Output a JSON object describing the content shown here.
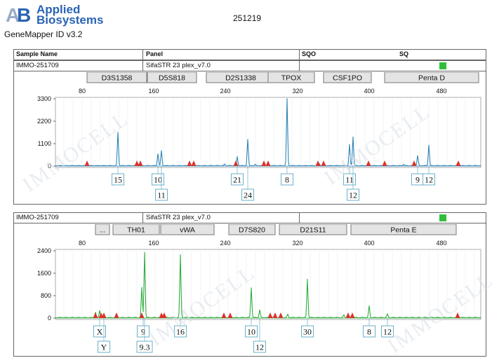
{
  "brand": {
    "line1": "Applied",
    "line2": "Biosystems",
    "logo": "AB",
    "logo_color": "#2a63b4"
  },
  "app_name": "GeneMapper ID v3.2",
  "run_id": "251219",
  "columns": {
    "sample_name": "Sample Name",
    "panel": "Panel",
    "sqo": "SQO",
    "sq": "SQ"
  },
  "watermark": "IMMOCELL",
  "panels": [
    {
      "sample": "IMMO-251709",
      "panel_name": "SifaSTR 23 plex_v7.0",
      "sq_color": "#2fbf3a",
      "dye_color": "#2f86b8",
      "markers": [
        "D3S1358",
        "D5S818",
        "D2S1338",
        "TPOX",
        "CSF1PO",
        "Penta D"
      ],
      "x_ticks": [
        "80",
        "160",
        "240",
        "320",
        "400",
        "480"
      ],
      "y_ticks": [
        "3300",
        "2200",
        "1100",
        "0"
      ],
      "alleles": [
        {
          "label": "15"
        },
        {
          "label": "10"
        },
        {
          "label": "11"
        },
        {
          "label": "21"
        },
        {
          "label": "24"
        },
        {
          "label": "8"
        },
        {
          "label": "11"
        },
        {
          "label": "12"
        },
        {
          "label": "9"
        },
        {
          "label": "12"
        }
      ]
    },
    {
      "sample": "IMMO-251709",
      "panel_name": "SifaSTR 23 plex_v7.0",
      "sq_color": "#2fbf3a",
      "dye_color": "#2fae3f",
      "markers": [
        "...",
        "TH01",
        "vWA",
        "D7S820",
        "D21S11",
        "Penta E"
      ],
      "x_ticks": [
        "80",
        "160",
        "240",
        "320",
        "400",
        "480"
      ],
      "y_ticks": [
        "2400",
        "1600",
        "800",
        "0"
      ],
      "alleles": [
        {
          "label": "X"
        },
        {
          "label": "Y"
        },
        {
          "label": "9"
        },
        {
          "label": "9.3"
        },
        {
          "label": "16"
        },
        {
          "label": "10"
        },
        {
          "label": "12"
        },
        {
          "label": "30"
        },
        {
          "label": "8"
        },
        {
          "label": "12"
        }
      ]
    }
  ]
}
